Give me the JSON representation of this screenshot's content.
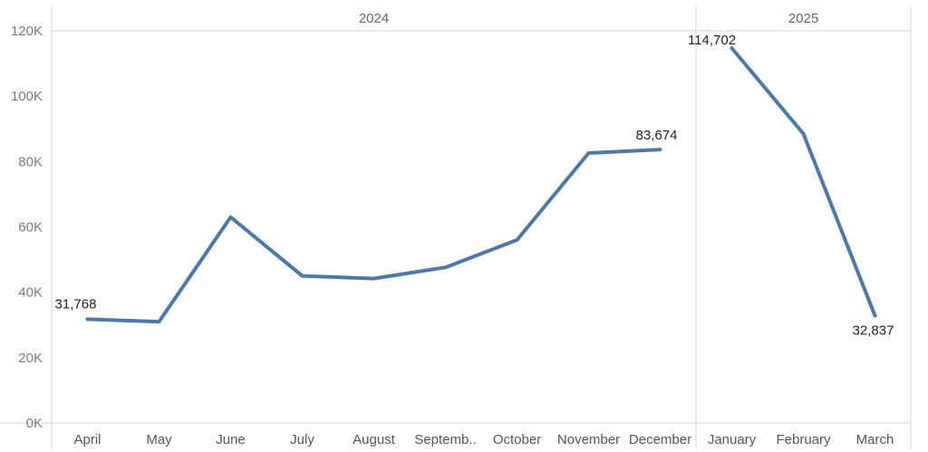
{
  "chart_data": {
    "type": "line",
    "title": "",
    "xlabel": "",
    "ylabel": "",
    "ylim": [
      0,
      120000
    ],
    "y_ticks": [
      "0K",
      "20K",
      "40K",
      "60K",
      "80K",
      "100K",
      "120K"
    ],
    "panels": [
      {
        "year": "2024",
        "categories": [
          "April",
          "May",
          "June",
          "July",
          "August",
          "Septemb..",
          "October",
          "November",
          "December"
        ],
        "values": [
          31768,
          31000,
          63000,
          45000,
          44200,
          47600,
          56000,
          82600,
          83674
        ],
        "labels": [
          {
            "index": 0,
            "text": "31,768"
          },
          {
            "index": 8,
            "text": "83,674"
          }
        ]
      },
      {
        "year": "2025",
        "categories": [
          "January",
          "February",
          "March"
        ],
        "values": [
          114702,
          88500,
          32837
        ],
        "labels": [
          {
            "index": 0,
            "text": "114,702"
          },
          {
            "index": 2,
            "text": "32,837"
          }
        ]
      }
    ],
    "line_color": "#4e79a7",
    "grid": false,
    "legend": "none"
  }
}
